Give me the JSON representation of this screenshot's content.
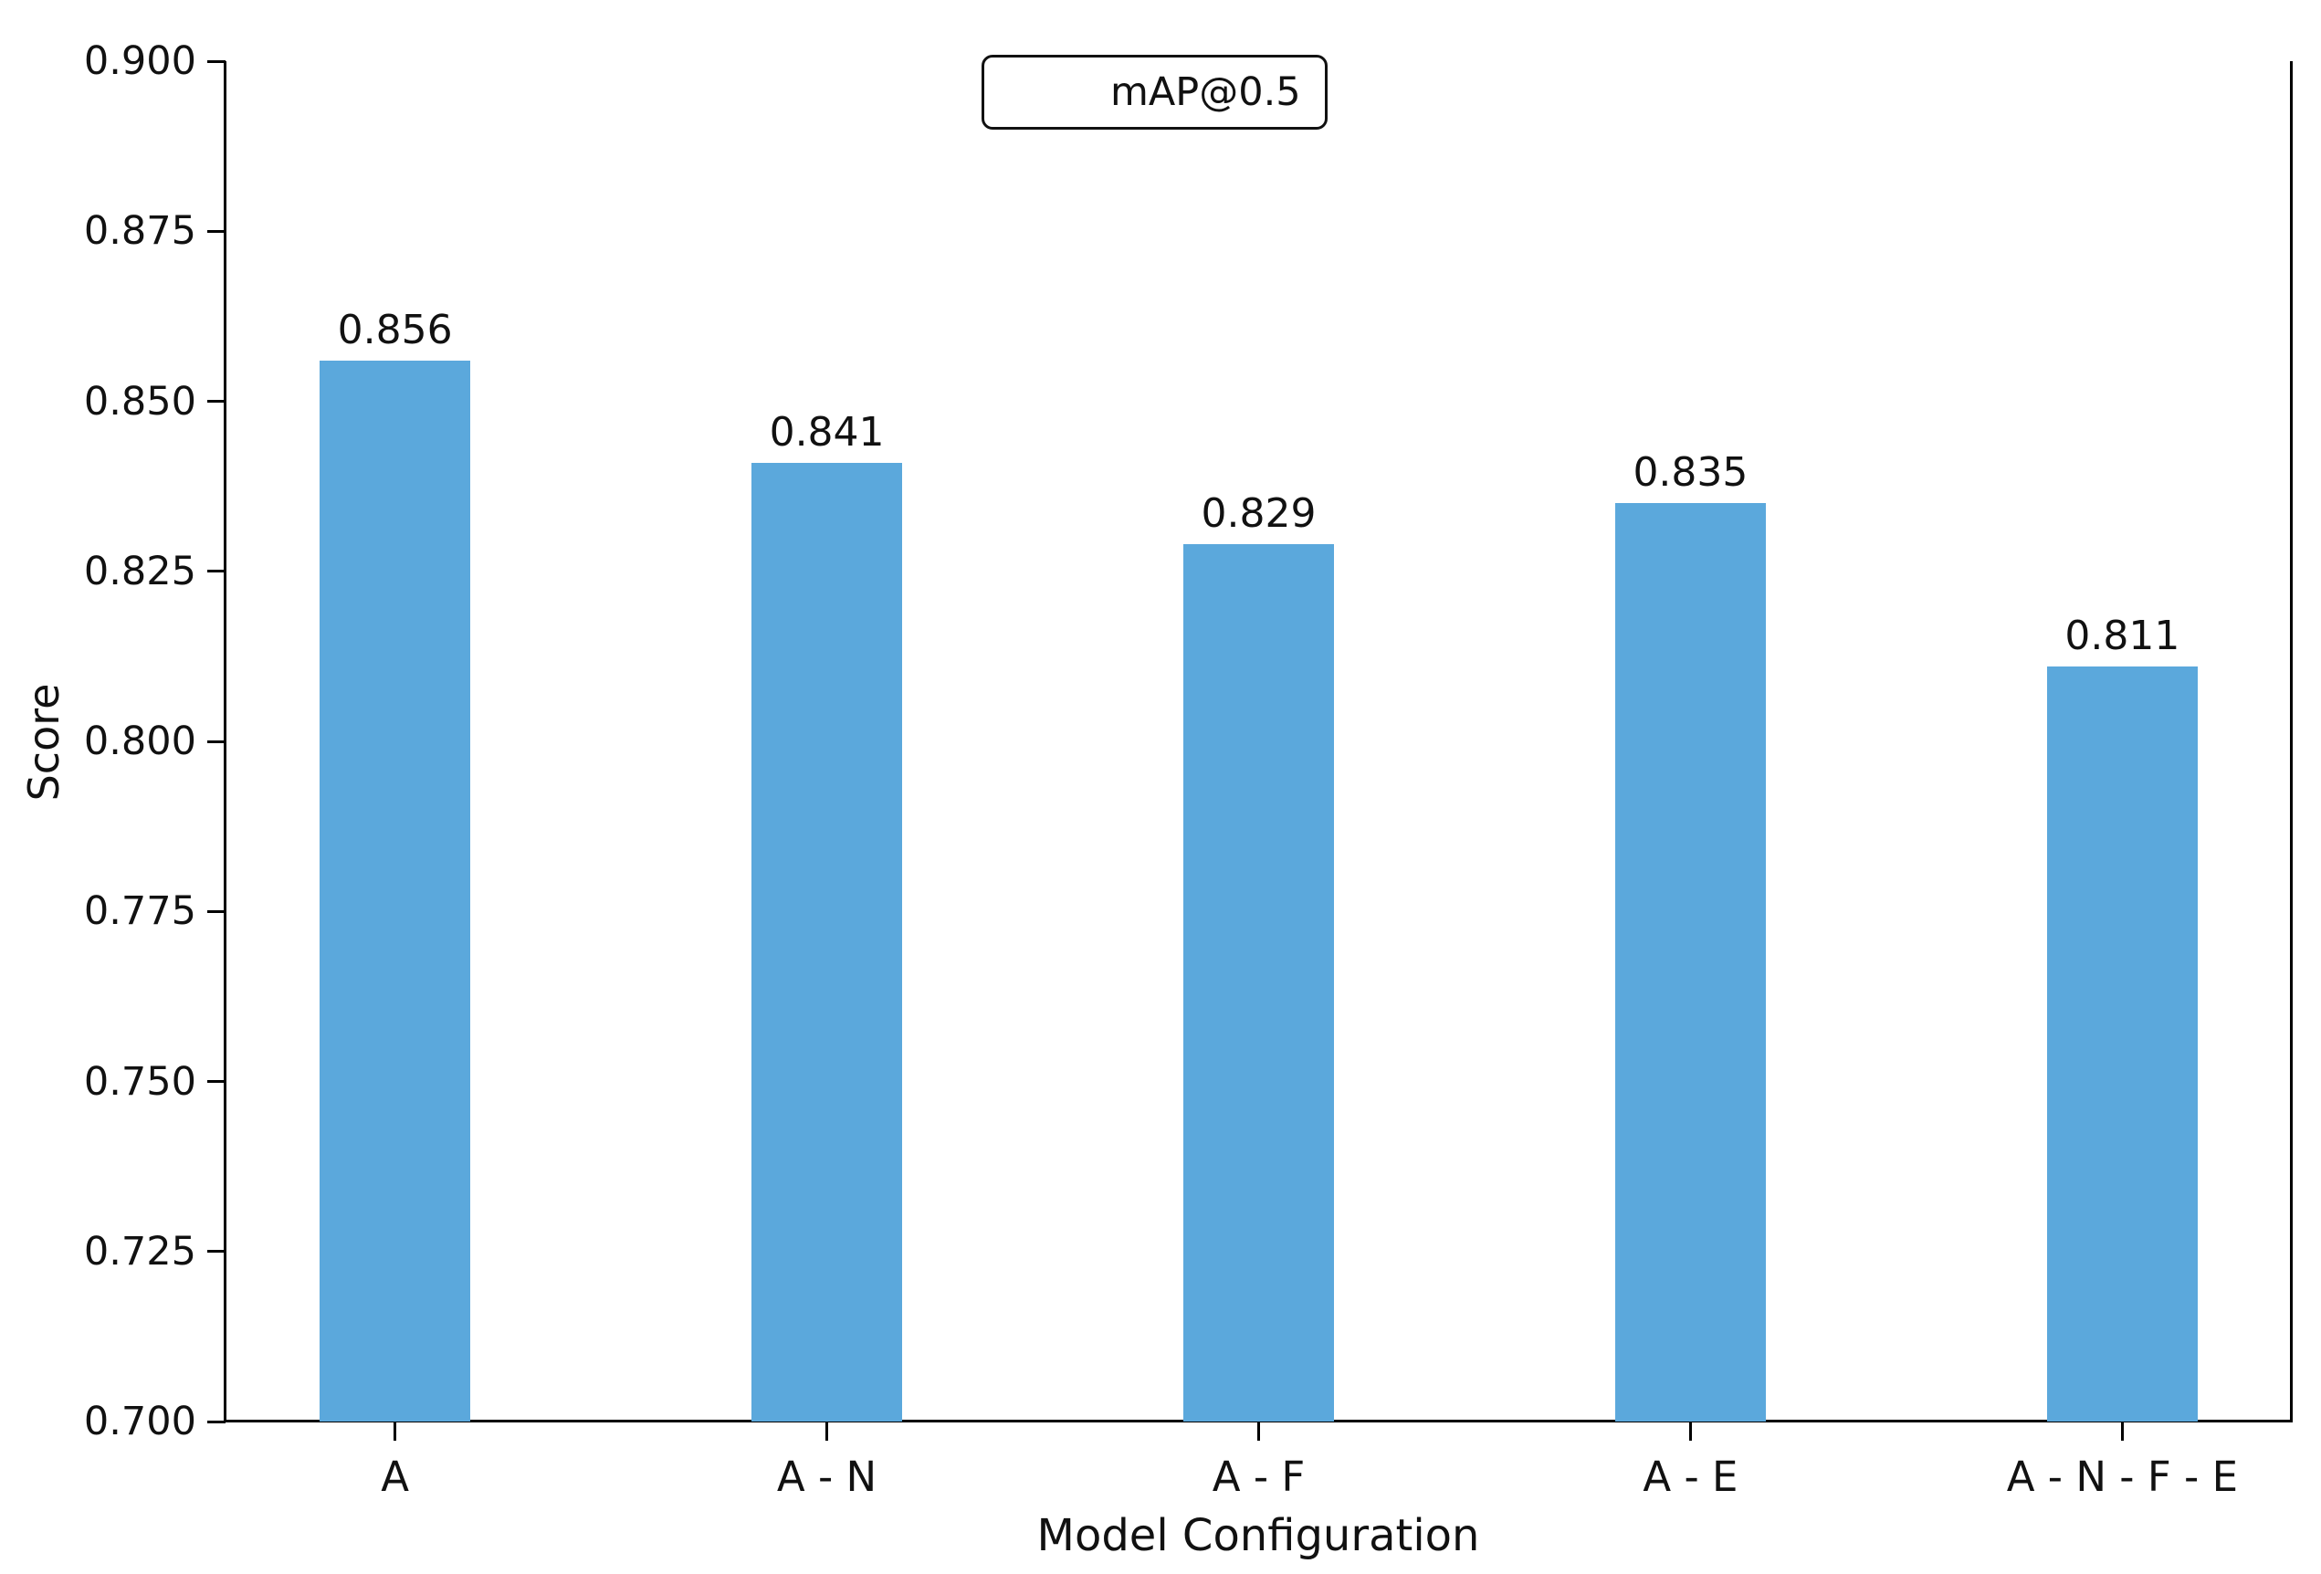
{
  "chart_data": {
    "type": "bar",
    "title": "",
    "xlabel": "Model Configuration",
    "ylabel": "Score",
    "categories": [
      "A",
      "A - N",
      "A - F",
      "A - E",
      "A - N - F - E"
    ],
    "series": [
      {
        "name": "mAP@0.5",
        "values": [
          0.856,
          0.841,
          0.829,
          0.835,
          0.811
        ]
      }
    ],
    "bar_labels": [
      "0.856",
      "0.841",
      "0.829",
      "0.835",
      "0.811"
    ],
    "ylim": [
      0.7,
      0.9
    ],
    "yticks": [
      0.7,
      0.725,
      0.75,
      0.775,
      0.8,
      0.825,
      0.85,
      0.875,
      0.9
    ],
    "ytick_format_decimals": 3,
    "grid": false,
    "legend": {
      "position": "upper center",
      "entries": [
        "mAP@0.5"
      ]
    },
    "colors": {
      "bar": "#5BA8DC",
      "spine": "#000000",
      "text": "#111111",
      "background": "#FFFFFF"
    }
  }
}
